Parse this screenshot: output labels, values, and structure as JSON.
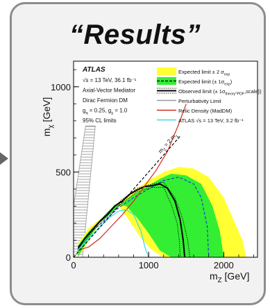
{
  "heading": "“Results”",
  "chart_data": {
    "type": "area",
    "xlabel": "m_ZA [GeV]",
    "ylabel": "m_χ [GeV]",
    "xlim": [
      0,
      2450
    ],
    "ylim": [
      0,
      1150
    ],
    "xticks": [
      0,
      1000,
      2000
    ],
    "yticks": [
      0,
      500,
      1000
    ],
    "x_tick_labels": [
      "0",
      "1000",
      "2000"
    ],
    "y_tick_labels": [
      "0",
      "500",
      "1000"
    ],
    "legend_position": "top-right",
    "info_text": {
      "experiment": "ATLAS",
      "energy": "√s = 13 TeV, 36.1 fb⁻¹",
      "model": "Axial-Vector Mediator",
      "dm": "Dirac Fermion DM",
      "couplings": "g_q = 0.25, g_χ = 1.0",
      "cl": "95% CL limits"
    },
    "diagonal_label": "m_ZA = 2 m_χ",
    "legend": [
      {
        "label": "Expected limit ± 2 σ_exp",
        "style": "band",
        "color": "#ffff33"
      },
      {
        "label": "Expected limit (± 1σ_exp)",
        "style": "band-dashed",
        "color": "#33ee33"
      },
      {
        "label": "Observed limit (± 1σ_theory^PDF, scale)",
        "style": "line-dotted",
        "color": "#000000"
      },
      {
        "label": "Perturbativity Limit",
        "style": "line",
        "color": "#999999"
      },
      {
        "label": "Relic Density (MadDM)",
        "style": "line",
        "color": "#d42a1e"
      },
      {
        "label": "ATLAS √s = 13 TeV, 3.2 fb⁻¹",
        "style": "line",
        "color": "#33dde8"
      }
    ],
    "series": [
      {
        "style": "yellow-band",
        "color": "#ffff33",
        "x": [
          60,
          200,
          400,
          600,
          800,
          1000,
          1200,
          1400,
          1600,
          1800,
          2000,
          2150,
          2250,
          2300,
          2250,
          2100,
          1950,
          1600,
          1400,
          1200,
          1050,
          900,
          750,
          600,
          400,
          250,
          120,
          60
        ],
        "y": [
          80,
          170,
          240,
          320,
          390,
          450,
          500,
          530,
          520,
          470,
          350,
          200,
          100,
          0,
          0,
          0,
          0,
          0,
          0,
          0,
          40,
          110,
          210,
          300,
          240,
          130,
          40,
          0
        ]
      },
      {
        "style": "green-band",
        "color": "#33ee33",
        "x": [
          60,
          200,
          400,
          600,
          800,
          1000,
          1150,
          1300,
          1500,
          1700,
          1850,
          1950,
          2000,
          1950,
          1850,
          1700,
          1500,
          1300,
          1150,
          1000,
          850,
          700,
          550,
          400,
          250,
          120,
          60
        ],
        "y": [
          70,
          150,
          220,
          300,
          370,
          420,
          460,
          490,
          480,
          430,
          300,
          150,
          0,
          0,
          0,
          0,
          0,
          0,
          40,
          140,
          230,
          300,
          310,
          240,
          140,
          50,
          0
        ]
      },
      {
        "name": "Expected limit (± 1σ_exp)",
        "style": "dashed",
        "color": "#1f3fd6",
        "x": [
          60,
          200,
          400,
          600,
          800,
          1000,
          1200,
          1400,
          1600,
          1700,
          1780,
          1800
        ],
        "y": [
          60,
          140,
          210,
          290,
          350,
          400,
          450,
          470,
          430,
          350,
          180,
          0
        ]
      },
      {
        "name": "Observed limit",
        "style": "solid",
        "color": "#000000",
        "x": [
          60,
          150,
          250,
          350,
          450,
          550,
          650,
          750,
          850,
          950,
          1050,
          1150,
          1250,
          1350,
          1420,
          1460,
          1480
        ],
        "y": [
          50,
          110,
          160,
          210,
          250,
          300,
          330,
          370,
          395,
          415,
          420,
          430,
          405,
          330,
          220,
          100,
          0
        ]
      },
      {
        "name": "Observed limit +1σ",
        "style": "dotted",
        "color": "#000000",
        "x": [
          60,
          250,
          450,
          650,
          850,
          1050,
          1200,
          1350,
          1450,
          1520,
          1550
        ],
        "y": [
          60,
          170,
          260,
          340,
          405,
          430,
          440,
          350,
          230,
          100,
          0
        ]
      },
      {
        "name": "Observed limit -1σ",
        "style": "dotted",
        "color": "#000000",
        "x": [
          60,
          250,
          450,
          650,
          850,
          1050,
          1200,
          1300,
          1380,
          1410,
          1420
        ],
        "y": [
          40,
          150,
          240,
          320,
          385,
          410,
          410,
          310,
          200,
          90,
          0
        ]
      },
      {
        "name": "Relic Density (MadDM)",
        "style": "solid",
        "color": "#d42a1e",
        "x": [
          50,
          200,
          350,
          500,
          650,
          800,
          950,
          1100,
          1250,
          1400,
          1500
        ],
        "y": [
          40,
          60,
          110,
          180,
          250,
          330,
          420,
          510,
          620,
          780,
          900
        ]
      },
      {
        "name": "ATLAS √s = 13 TeV, 3.2 fb⁻¹",
        "style": "solid",
        "color": "#33dde8",
        "x": [
          50,
          200,
          350,
          500,
          600,
          700,
          800,
          900,
          950,
          1000
        ],
        "y": [
          40,
          110,
          180,
          240,
          270,
          280,
          250,
          150,
          60,
          0
        ]
      },
      {
        "name": "m_ZA = 2 m_χ",
        "style": "dashed",
        "color": "#000000",
        "x": [
          0,
          1430
        ],
        "y": [
          0,
          715
        ]
      }
    ],
    "perturbativity_region": {
      "color": "#999999",
      "x": [
        0,
        0,
        160,
        290,
        120
      ],
      "y": [
        0,
        300,
        770,
        770,
        0
      ]
    }
  }
}
